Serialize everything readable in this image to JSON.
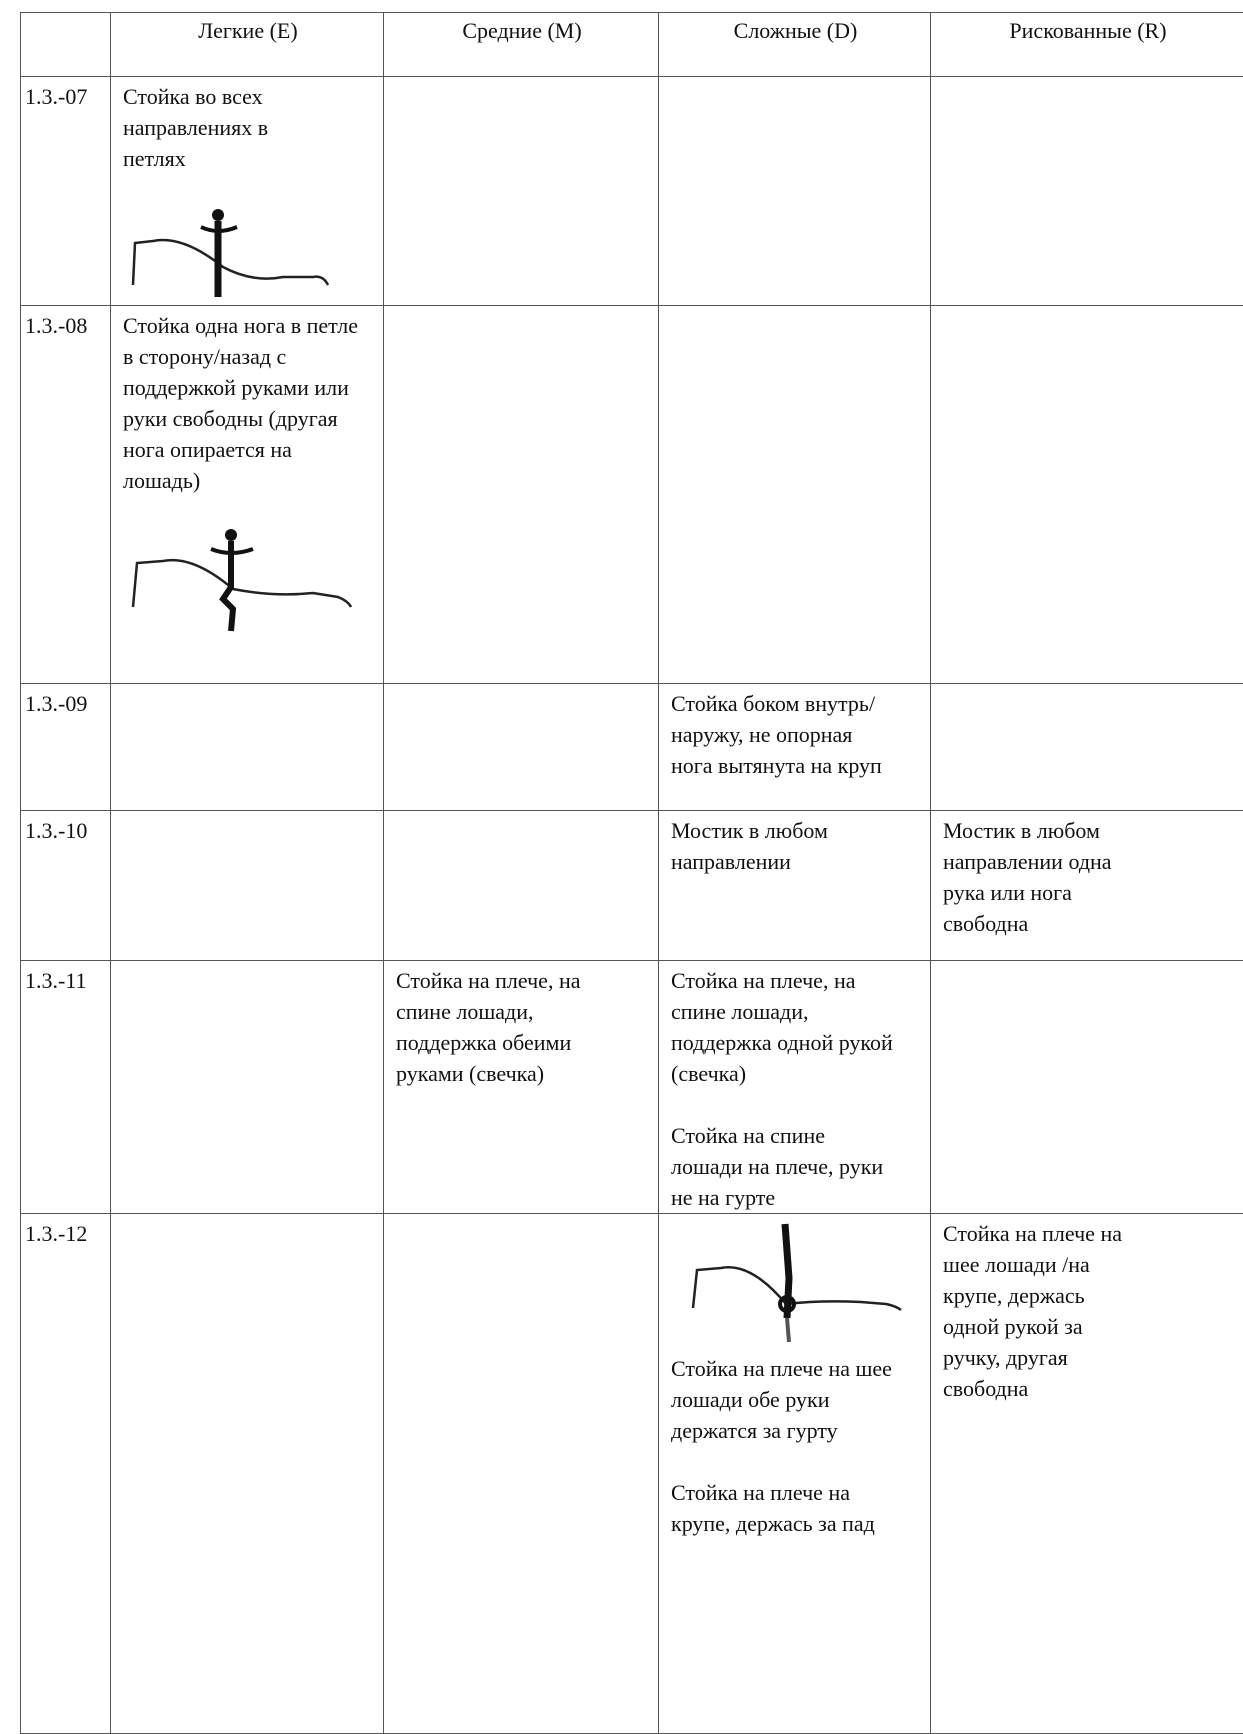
{
  "columns": [
    "Легкие (E)",
    "Средние (M)",
    "Сложные (D)",
    "Рискованные (R)"
  ],
  "rows": [
    {
      "id": "1.3.-07",
      "E": [
        "Стойка во всех направлениях в петлях"
      ]
    },
    {
      "id": "1.3.-08",
      "E": [
        "Стойка одна нога в петле в сторону/назад с поддержкой руками или руки свободны (другая нога опирается на лошадь)"
      ]
    },
    {
      "id": "1.3.-09",
      "D": [
        "Стойка боком внутрь/наружу, не опорная нога вытянута на круп"
      ]
    },
    {
      "id": "1.3.-10",
      "D": [
        "Мостик в любом направлении"
      ],
      "R": [
        "Мостик в любом направлении одна рука или нога свободна"
      ]
    },
    {
      "id": "1.3.-11",
      "M": [
        "Стойка на плече, на спине лошади, поддержка обеими руками (свечка)"
      ],
      "D": [
        "Стойка на плече, на спине лошади, поддержка одной рукой (свечка)",
        "Стойка на спине лошади на плече, руки не на гурте"
      ]
    },
    {
      "id": "1.3.-12",
      "D": [
        "Стойка на плече на шее лошади обе руки держатся за гурту",
        "Стойка на плече на крупе, держась за пад"
      ],
      "R": [
        "Стойка на плече на шее лошади /на крупе,  держась одной рукой за ручку, другая свободна"
      ]
    }
  ]
}
